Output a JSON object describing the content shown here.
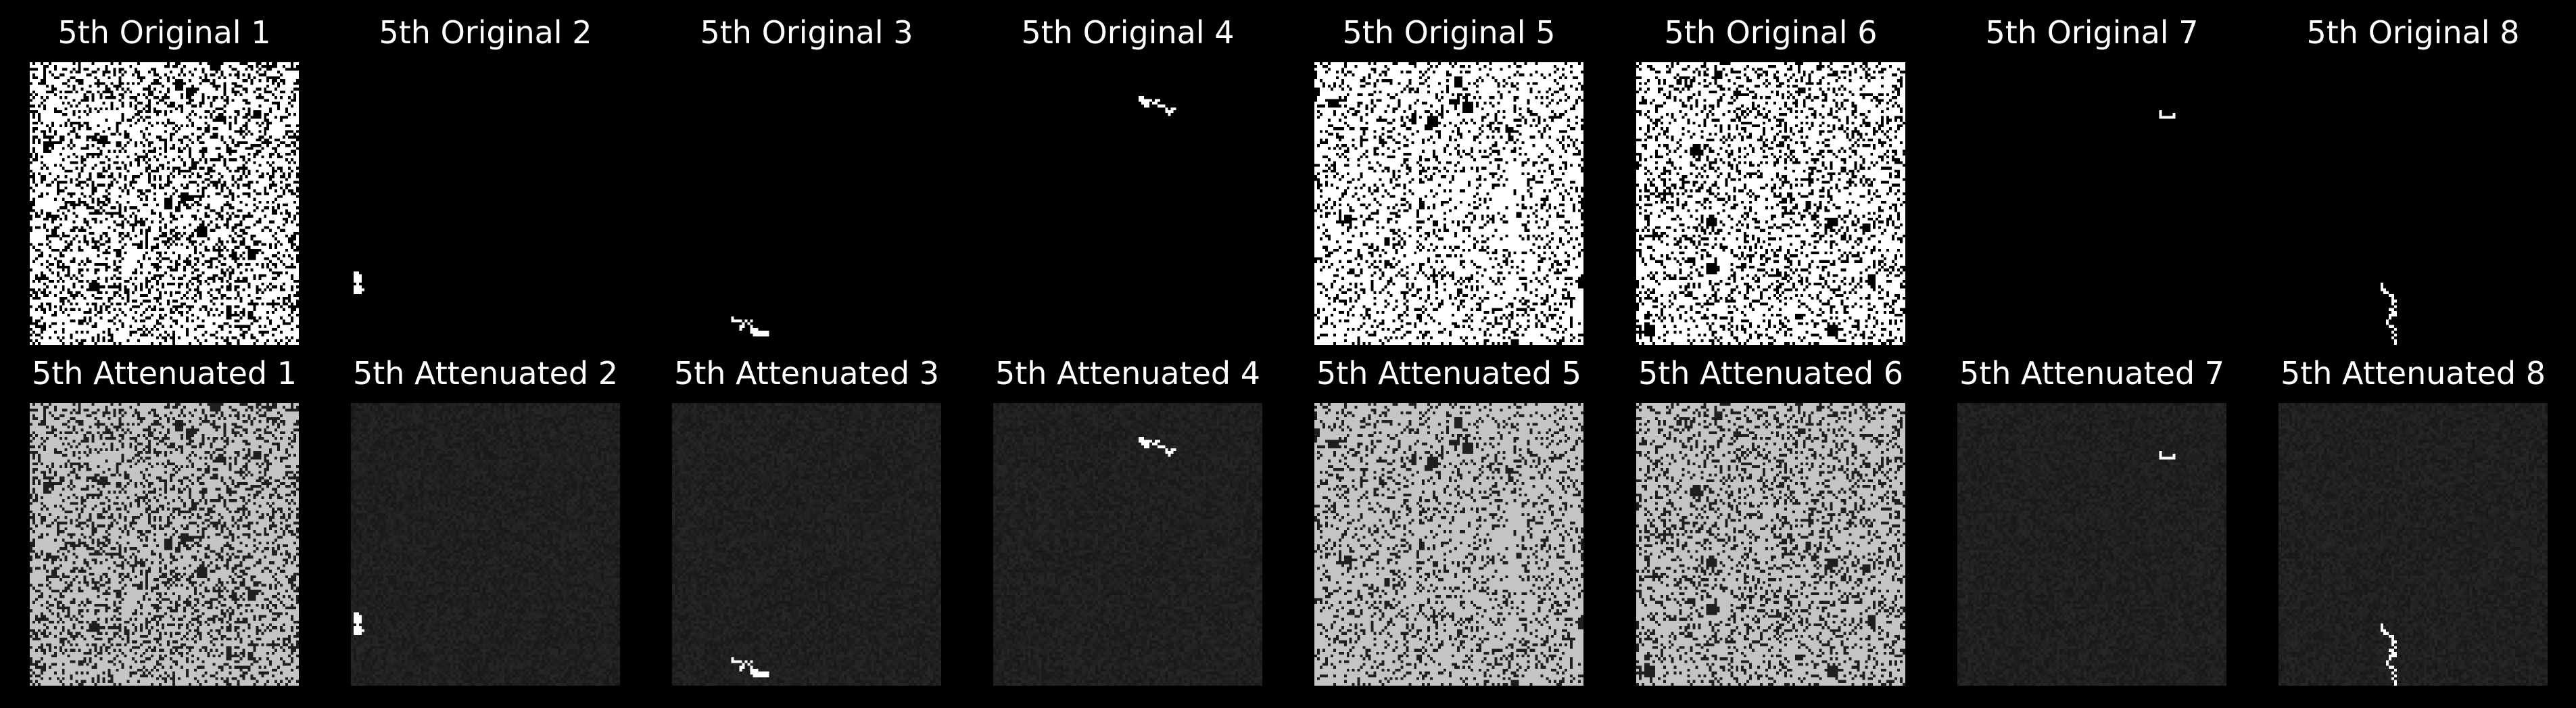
{
  "rows": [
    {
      "kind": "original",
      "titles": [
        "5th Original 1",
        "5th Original 2",
        "5th Original 3",
        "5th Original 4",
        "5th Original 5",
        "5th Original 6",
        "5th Original 7",
        "5th Original 8"
      ]
    },
    {
      "kind": "attenuated",
      "titles": [
        "5th Attenuated 1",
        "5th Attenuated 2",
        "5th Attenuated 3",
        "5th Attenuated 4",
        "5th Attenuated 5",
        "5th Attenuated 6",
        "5th Attenuated 7",
        "5th Attenuated 8"
      ]
    }
  ],
  "colors": {
    "background": "#000000",
    "original_on": "#ffffff",
    "original_off": "#000000",
    "attenuated_on_light": "#c4c4c4",
    "attenuated_off": "#1f1f1f",
    "sparse_blob": "#ffffff"
  },
  "tile_patterns": [
    {
      "style": "dense-noise",
      "fill_fraction": 0.72
    },
    {
      "style": "sparse-blob",
      "fill_fraction": 0.003
    },
    {
      "style": "sparse-blob",
      "fill_fraction": 0.003
    },
    {
      "style": "sparse-blob",
      "fill_fraction": 0.003
    },
    {
      "style": "dense-noise",
      "fill_fraction": 0.8
    },
    {
      "style": "dense-noise",
      "fill_fraction": 0.75
    },
    {
      "style": "sparse-blob",
      "fill_fraction": 0.001
    },
    {
      "style": "sparse-blob",
      "fill_fraction": 0.003
    }
  ]
}
